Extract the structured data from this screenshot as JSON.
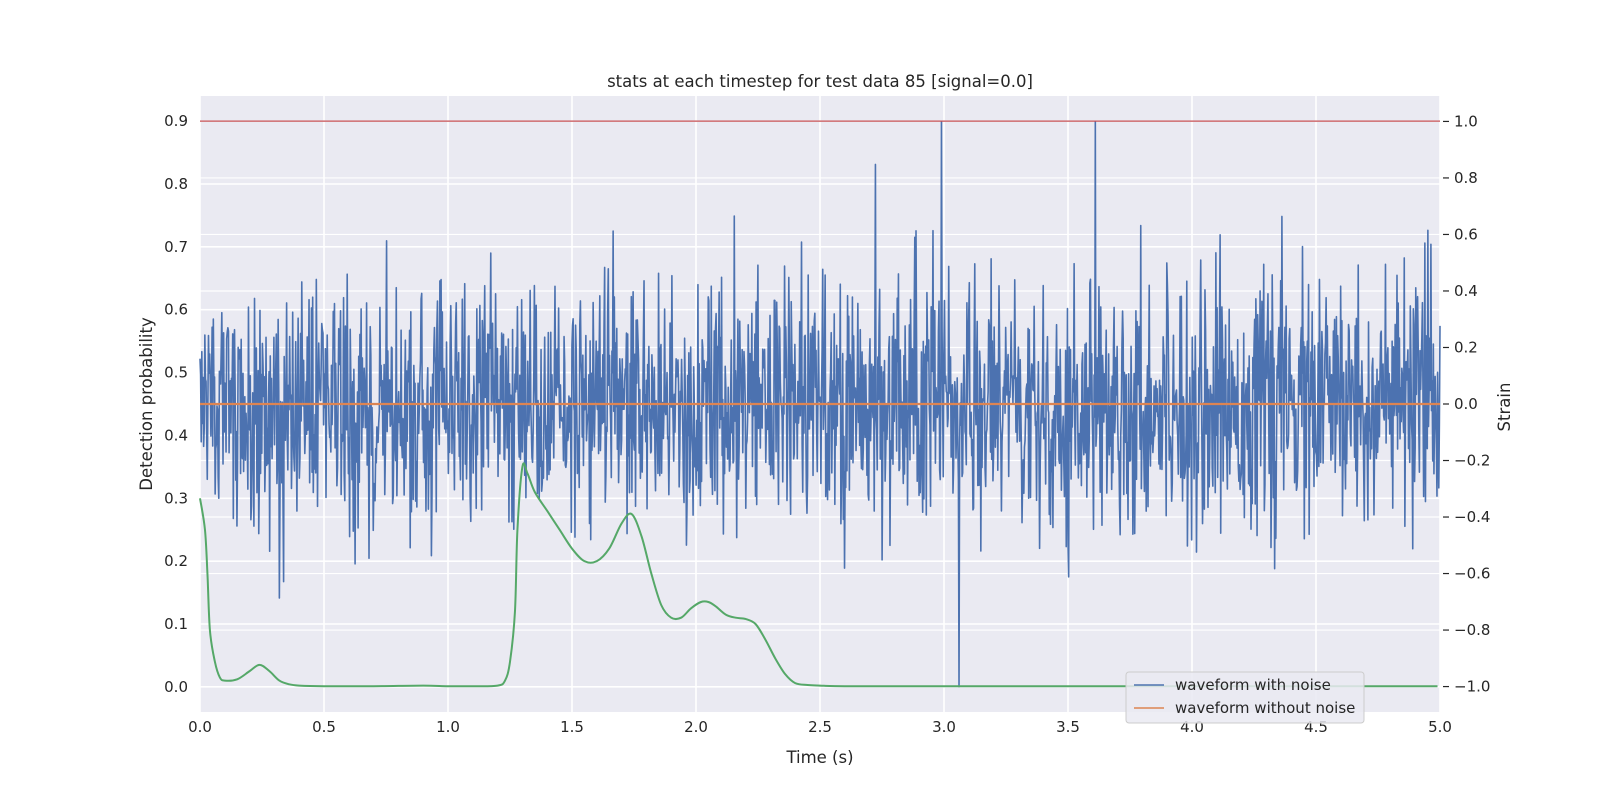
{
  "chart_data": {
    "type": "line",
    "title": "stats at each timestep for test data 85 [signal=0.0]",
    "xlabel": "Time (s)",
    "ylabel": "Detection probability",
    "ylabel_right": "Strain",
    "xlim": [
      0.0,
      5.0
    ],
    "ylim": [
      -0.04,
      0.94
    ],
    "ylim_right": [
      -1.09,
      1.09
    ],
    "x_ticks": [
      "0.0",
      "0.5",
      "1.0",
      "1.5",
      "2.0",
      "2.5",
      "3.0",
      "3.5",
      "4.0",
      "4.5",
      "5.0"
    ],
    "y_ticks": [
      "0.0",
      "0.1",
      "0.2",
      "0.3",
      "0.4",
      "0.5",
      "0.6",
      "0.7",
      "0.8",
      "0.9"
    ],
    "y_ticks_right": [
      "−1.0",
      "−0.8",
      "−0.6",
      "−0.4",
      "−0.2",
      "0.0",
      "0.2",
      "0.4",
      "0.6",
      "0.8",
      "1.0"
    ],
    "grid": true,
    "legend_position": "lower-right",
    "colors": {
      "noise": "#4c72b0",
      "clean": "#dd8452",
      "probability": "#55a868",
      "threshold": "#c44e52",
      "plot_bg": "#eaeaf2",
      "grid": "#ffffff"
    },
    "series": [
      {
        "name": "waveform with noise",
        "axis": "right",
        "duration": 5.0,
        "samples": 2048,
        "approx_std": 0.22,
        "approx_range": [
          -1.0,
          1.0
        ],
        "description_values": "random noise around 0, peaks near ±0.9, max 1.0 at t≈2.99 and t≈3.61, min −1.0 at t≈3.06"
      },
      {
        "name": "waveform without noise",
        "axis": "right",
        "x": [
          0.0,
          5.0
        ],
        "y": [
          0.0,
          0.0
        ]
      },
      {
        "axis": "left",
        "x": [
          0.0,
          0.02,
          0.03,
          0.04,
          0.06,
          0.08,
          0.1,
          0.15,
          0.2,
          0.24,
          0.28,
          0.32,
          0.36,
          0.4,
          0.5,
          0.7,
          0.9,
          1.0,
          1.1,
          1.2,
          1.23,
          1.25,
          1.27,
          1.28,
          1.3,
          1.32,
          1.35,
          1.4,
          1.45,
          1.5,
          1.55,
          1.6,
          1.65,
          1.7,
          1.74,
          1.78,
          1.82,
          1.86,
          1.9,
          1.94,
          1.98,
          2.02,
          2.05,
          2.08,
          2.12,
          2.16,
          2.2,
          2.24,
          2.28,
          2.32,
          2.36,
          2.4,
          2.45,
          2.5,
          2.6,
          3.0,
          4.0,
          4.99
        ],
        "y": [
          0.3,
          0.25,
          0.18,
          0.09,
          0.04,
          0.015,
          0.01,
          0.012,
          0.025,
          0.035,
          0.025,
          0.01,
          0.004,
          0.002,
          0.001,
          0.001,
          0.002,
          0.001,
          0.001,
          0.002,
          0.01,
          0.04,
          0.12,
          0.25,
          0.35,
          0.34,
          0.31,
          0.28,
          0.25,
          0.22,
          0.2,
          0.2,
          0.22,
          0.26,
          0.275,
          0.24,
          0.18,
          0.13,
          0.11,
          0.11,
          0.125,
          0.135,
          0.135,
          0.128,
          0.115,
          0.11,
          0.108,
          0.1,
          0.075,
          0.045,
          0.02,
          0.006,
          0.003,
          0.002,
          0.001,
          0.001,
          0.001,
          0.001
        ]
      },
      {
        "axis": "left",
        "x": [
          0.0,
          5.0
        ],
        "y": [
          0.9,
          0.9
        ]
      }
    ]
  }
}
